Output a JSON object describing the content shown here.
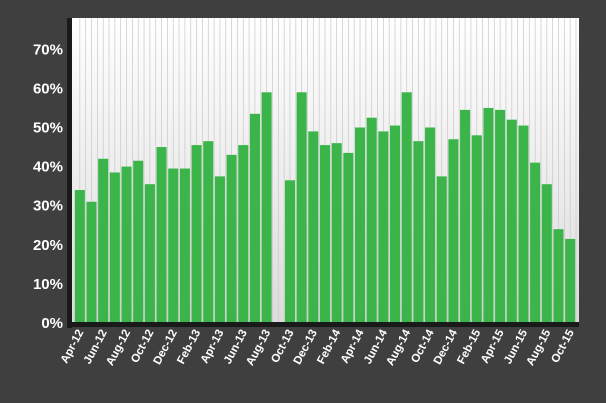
{
  "chart_data": {
    "type": "bar",
    "title": "",
    "xlabel": "",
    "ylabel": "",
    "ylim": [
      0,
      78
    ],
    "yticks": [
      0,
      10,
      20,
      30,
      40,
      50,
      60,
      70
    ],
    "ytick_suffix": "%",
    "grid": "vertical",
    "colors": {
      "bar": "#3bb54a",
      "page_background": "#3f3f3f",
      "plot_background_top": "#ffffff",
      "plot_background_bottom": "#dcdcdc",
      "grid": "#c8c8c8",
      "axis": "#1a1a1a",
      "tick_text": "#ffffff"
    },
    "categories": [
      "Apr-12",
      "May-12",
      "Jun-12",
      "Jul-12",
      "Aug-12",
      "Sep-12",
      "Oct-12",
      "Nov-12",
      "Dec-12",
      "Jan-13",
      "Feb-13",
      "Mar-13",
      "Apr-13",
      "May-13",
      "Jun-13",
      "Jul-13",
      "Aug-13",
      "Sep-13",
      "Oct-13",
      "Nov-13",
      "Dec-13",
      "Jan-14",
      "Feb-14",
      "Mar-14",
      "Apr-14",
      "May-14",
      "Jun-14",
      "Jul-14",
      "Aug-14",
      "Sep-14",
      "Oct-14",
      "Nov-14",
      "Dec-14",
      "Jan-15",
      "Feb-15",
      "Mar-15",
      "Apr-15",
      "May-15",
      "Jun-15",
      "Jul-15",
      "Aug-15",
      "Sep-15",
      "Oct-15"
    ],
    "values": [
      34,
      31,
      42,
      38.5,
      40,
      41.5,
      35.5,
      45,
      39.5,
      39.5,
      45.5,
      46.5,
      37.5,
      43,
      45.5,
      53.5,
      59,
      null,
      36.5,
      59,
      49,
      45.5,
      46,
      43.5,
      50,
      52.5,
      49,
      50.5,
      59,
      46.5,
      50,
      37.5,
      47,
      54.5,
      48,
      55,
      54.5,
      52,
      50.5,
      41,
      35.5,
      24,
      21.5
    ],
    "xtick_labels": [
      "Apr-12",
      "Jun-12",
      "Aug-12",
      "Oct-12",
      "Dec-12",
      "Feb-13",
      "Apr-13",
      "Jun-13",
      "Aug-13",
      "Oct-13",
      "Dec-13",
      "Feb-14",
      "Apr-14",
      "Jun-14",
      "Aug-14",
      "Oct-14",
      "Dec-14",
      "Feb-15",
      "Apr-15",
      "Jun-15",
      "Aug-15",
      "Oct-15"
    ]
  }
}
